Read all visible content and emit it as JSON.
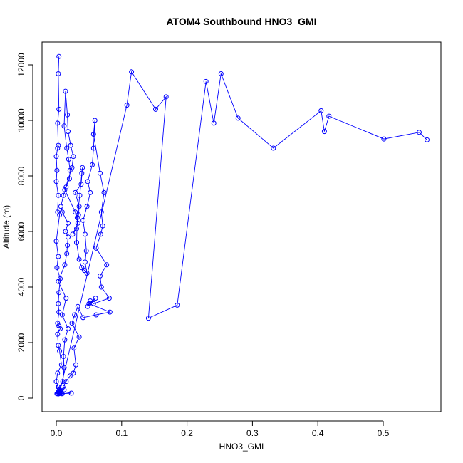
{
  "chart_data": {
    "type": "line",
    "title": "ATOM4 Southbound HNO3_GMI",
    "xlabel": "HNO3_GMI",
    "ylabel": "Altitude (m)",
    "xlim": [
      0,
      0.6
    ],
    "ylim": [
      0,
      12400
    ],
    "x_ticks": [
      0.0,
      0.1,
      0.2,
      0.3,
      0.4,
      0.5
    ],
    "x_tick_labels": [
      "0.0",
      "0.1",
      "0.2",
      "0.3",
      "0.4",
      "0.5"
    ],
    "y_ticks": [
      0,
      2000,
      4000,
      6000,
      8000,
      10000,
      12000
    ],
    "y_tick_labels": [
      "0",
      "2000",
      "4000",
      "6000",
      "8000",
      "10000",
      "12000"
    ],
    "grid": false,
    "legend": "none",
    "marker": "open-circle",
    "series_color": "#0000ff",
    "series": [
      {
        "x": [
          0.004,
          0.003,
          0.004,
          0.002,
          0.003,
          0.002,
          0.0,
          0.001,
          0.0,
          0.003,
          0.002,
          0.005,
          0.0,
          0.003,
          0.001,
          0.006,
          0.004,
          0.003,
          0.004,
          0.002,
          0.004,
          0.006,
          0.002,
          0.003,
          0.005,
          0.008,
          0.002,
          0.0,
          0.003,
          0.005,
          0.004,
          0.006,
          0.001,
          0.003,
          0.009,
          0.005,
          0.002,
          0.004,
          0.003,
          0.008,
          0.023,
          0.006,
          0.004,
          0.01,
          0.012,
          0.011,
          0.013,
          0.018,
          0.009,
          0.015,
          0.003,
          0.013,
          0.016,
          0.017,
          0.018,
          0.014,
          0.018,
          0.009,
          0.007,
          0.011,
          0.015,
          0.02,
          0.021,
          0.019,
          0.016,
          0.012,
          0.014,
          0.017,
          0.018,
          0.022,
          0.026,
          0.024,
          0.013,
          0.029,
          0.033,
          0.025,
          0.031,
          0.034,
          0.035,
          0.029,
          0.038,
          0.04,
          0.039,
          0.036,
          0.032,
          0.031,
          0.035,
          0.039,
          0.043,
          0.047,
          0.044,
          0.046,
          0.044,
          0.041,
          0.047,
          0.052,
          0.048,
          0.055,
          0.057,
          0.059,
          0.057,
          0.067,
          0.073,
          0.069,
          0.071,
          0.068,
          0.061,
          0.077,
          0.067,
          0.069,
          0.081,
          0.057,
          0.052,
          0.048,
          0.06,
          0.05,
          0.082,
          0.061,
          0.041,
          0.033,
          0.028,
          0.024,
          0.035,
          0.027,
          0.03,
          0.026,
          0.021,
          0.015,
          0.01,
          0.012,
          0.005,
          0.108,
          0.115,
          0.152,
          0.168,
          0.141,
          0.185,
          0.229,
          0.241,
          0.252,
          0.278,
          0.332,
          0.405,
          0.41,
          0.417,
          0.501,
          0.555,
          0.567
        ],
        "y": [
          12300,
          11680,
          10400,
          9900,
          9100,
          9000,
          8700,
          8200,
          7800,
          7300,
          6700,
          6600,
          5650,
          5100,
          4700,
          4300,
          3800,
          3400,
          3100,
          2700,
          2600,
          2500,
          2300,
          1900,
          1700,
          1200,
          900,
          600,
          400,
          300,
          200,
          180,
          160,
          150,
          160,
          170,
          180,
          200,
          220,
          160,
          180,
          250,
          400,
          600,
          1100,
          1500,
          2100,
          2500,
          3000,
          3600,
          4200,
          4800,
          5200,
          5500,
          5800,
          6000,
          6300,
          6700,
          6900,
          7300,
          7600,
          7900,
          8200,
          8600,
          9000,
          9800,
          11050,
          10200,
          9600,
          9100,
          8700,
          8300,
          7500,
          6700,
          6300,
          5900,
          6100,
          6600,
          6900,
          7400,
          7700,
          8300,
          8100,
          7300,
          6500,
          5600,
          5000,
          4700,
          4600,
          4500,
          4900,
          5300,
          5900,
          6400,
          6900,
          7400,
          7800,
          8400,
          9000,
          10000,
          9500,
          8100,
          7400,
          6700,
          6200,
          5900,
          5400,
          4800,
          4400,
          4000,
          3600,
          3400,
          3500,
          3300,
          3600,
          3400,
          3100,
          3000,
          2900,
          3300,
          3000,
          2700,
          2200,
          1800,
          1200,
          900,
          800,
          600,
          400,
          300,
          200,
          10550,
          11750,
          10400,
          10850,
          2880,
          3350,
          11400,
          9900,
          11680,
          10080,
          9000,
          10350,
          9600,
          10150,
          9330,
          9570,
          9300
        ]
      }
    ]
  }
}
